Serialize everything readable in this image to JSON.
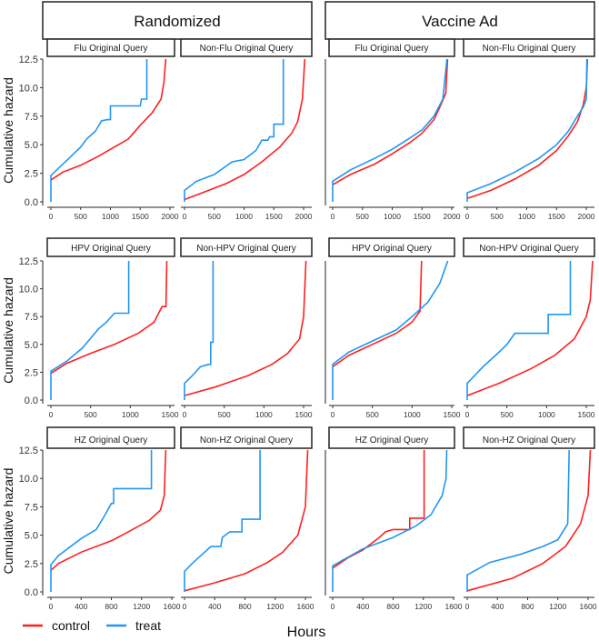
{
  "chart_data": {
    "type": "line",
    "ylabel": "Cumulative hazard",
    "xlabel": "Hours",
    "ylim": [
      0,
      12.5
    ],
    "yticks": [
      "0.0",
      "2.5",
      "5.0",
      "7.5",
      "10.0",
      "12.5"
    ],
    "groups": [
      "Randomized",
      "Vaccine Ad"
    ],
    "legend": {
      "placement": "bottom-left",
      "entries": [
        {
          "name": "control",
          "color": "#ff1f1f"
        },
        {
          "name": "treat",
          "color": "#2196f3"
        }
      ]
    },
    "rows": [
      {
        "xmax": 2000,
        "xticks": [
          "0",
          "500",
          "1000",
          "1500",
          "2000"
        ]
      },
      {
        "xmax": 1500,
        "xticks": [
          "0",
          "500",
          "1000",
          "1500"
        ]
      },
      {
        "xmax": 1600,
        "xticks": [
          "0",
          "400",
          "800",
          "1200",
          "1600"
        ]
      }
    ],
    "panels": [
      {
        "title": "Flu Original Query",
        "group": 0,
        "row": 0,
        "col": 0,
        "control": [
          [
            0,
            1.9
          ],
          [
            200,
            2.6
          ],
          [
            500,
            3.2
          ],
          [
            800,
            4
          ],
          [
            1000,
            4.6
          ],
          [
            1300,
            5.5
          ],
          [
            1500,
            6.7
          ],
          [
            1700,
            7.8
          ],
          [
            1850,
            9
          ],
          [
            1900,
            10.5
          ],
          [
            1930,
            12.5
          ]
        ],
        "treat": [
          [
            0,
            0
          ],
          [
            0,
            2.3
          ],
          [
            100,
            2.8
          ],
          [
            300,
            3.8
          ],
          [
            500,
            4.8
          ],
          [
            600,
            5.5
          ],
          [
            750,
            6.2
          ],
          [
            850,
            7.1
          ],
          [
            950,
            7.2
          ],
          [
            1000,
            7.2
          ],
          [
            1000,
            8.4
          ],
          [
            1500,
            8.4
          ],
          [
            1520,
            9
          ],
          [
            1610,
            9
          ],
          [
            1610,
            12.5
          ]
        ]
      },
      {
        "title": "Non-Flu Original Query",
        "group": 0,
        "row": 0,
        "col": 1,
        "control": [
          [
            0,
            0.2
          ],
          [
            300,
            0.8
          ],
          [
            700,
            1.6
          ],
          [
            1000,
            2.4
          ],
          [
            1300,
            3.5
          ],
          [
            1600,
            4.8
          ],
          [
            1800,
            6
          ],
          [
            1900,
            7
          ],
          [
            1980,
            9
          ],
          [
            2020,
            12.5
          ]
        ],
        "treat": [
          [
            0,
            0
          ],
          [
            0,
            1
          ],
          [
            200,
            1.8
          ],
          [
            500,
            2.4
          ],
          [
            800,
            3.5
          ],
          [
            1000,
            3.7
          ],
          [
            1200,
            4.5
          ],
          [
            1300,
            5.4
          ],
          [
            1400,
            5.4
          ],
          [
            1430,
            5.7
          ],
          [
            1500,
            5.7
          ],
          [
            1500,
            6.8
          ],
          [
            1660,
            6.8
          ],
          [
            1660,
            12.5
          ]
        ]
      },
      {
        "title": "Flu Original Query",
        "group": 1,
        "row": 0,
        "col": 0,
        "control": [
          [
            0,
            1.5
          ],
          [
            300,
            2.4
          ],
          [
            700,
            3.3
          ],
          [
            1000,
            4.2
          ],
          [
            1300,
            5.2
          ],
          [
            1500,
            6
          ],
          [
            1700,
            7.2
          ],
          [
            1800,
            8.3
          ],
          [
            1900,
            9.5
          ],
          [
            1930,
            12.5
          ]
        ],
        "treat": [
          [
            0,
            0
          ],
          [
            0,
            1.8
          ],
          [
            300,
            2.8
          ],
          [
            700,
            3.8
          ],
          [
            1000,
            4.6
          ],
          [
            1300,
            5.6
          ],
          [
            1500,
            6.3
          ],
          [
            1700,
            7.5
          ],
          [
            1850,
            9
          ],
          [
            1900,
            11.5
          ],
          [
            1920,
            12.5
          ]
        ]
      },
      {
        "title": "Non-Flu Original Query",
        "group": 1,
        "row": 0,
        "col": 1,
        "control": [
          [
            0,
            0.3
          ],
          [
            400,
            1
          ],
          [
            800,
            2
          ],
          [
            1200,
            3.2
          ],
          [
            1500,
            4.5
          ],
          [
            1700,
            5.8
          ],
          [
            1850,
            7
          ],
          [
            1950,
            8.5
          ],
          [
            2000,
            10
          ],
          [
            2020,
            12.5
          ]
        ],
        "treat": [
          [
            0,
            0
          ],
          [
            0,
            0.8
          ],
          [
            400,
            1.6
          ],
          [
            800,
            2.6
          ],
          [
            1200,
            3.8
          ],
          [
            1500,
            5
          ],
          [
            1700,
            6.2
          ],
          [
            1850,
            7.5
          ],
          [
            1950,
            8.3
          ],
          [
            2000,
            9
          ],
          [
            2010,
            12.5
          ]
        ]
      },
      {
        "title": "HPV Original Query",
        "group": 0,
        "row": 1,
        "col": 0,
        "control": [
          [
            0,
            2.4
          ],
          [
            200,
            3.3
          ],
          [
            500,
            4.2
          ],
          [
            800,
            5
          ],
          [
            1100,
            6
          ],
          [
            1300,
            7
          ],
          [
            1400,
            8.4
          ],
          [
            1450,
            8.4
          ],
          [
            1460,
            12.5
          ]
        ],
        "treat": [
          [
            0,
            0
          ],
          [
            0,
            2.6
          ],
          [
            200,
            3.5
          ],
          [
            400,
            4.7
          ],
          [
            600,
            6.4
          ],
          [
            700,
            7
          ],
          [
            800,
            7.8
          ],
          [
            980,
            7.8
          ],
          [
            980,
            12.5
          ]
        ]
      },
      {
        "title": "Non-HPV Original Query",
        "group": 0,
        "row": 1,
        "col": 1,
        "control": [
          [
            0,
            0.4
          ],
          [
            400,
            1.2
          ],
          [
            800,
            2.2
          ],
          [
            1100,
            3.2
          ],
          [
            1300,
            4.2
          ],
          [
            1450,
            5.5
          ],
          [
            1500,
            7.5
          ],
          [
            1530,
            12.5
          ]
        ],
        "treat": [
          [
            0,
            0
          ],
          [
            0,
            1.5
          ],
          [
            100,
            2.2
          ],
          [
            200,
            3
          ],
          [
            300,
            3.2
          ],
          [
            330,
            3.2
          ],
          [
            330,
            5.2
          ],
          [
            360,
            5.2
          ],
          [
            360,
            12.5
          ]
        ]
      },
      {
        "title": "HPV Original Query",
        "group": 1,
        "row": 1,
        "col": 0,
        "control": [
          [
            0,
            3
          ],
          [
            200,
            4
          ],
          [
            500,
            5
          ],
          [
            800,
            6
          ],
          [
            1000,
            7
          ],
          [
            1100,
            8
          ],
          [
            1120,
            12.5
          ]
        ],
        "treat": [
          [
            0,
            0
          ],
          [
            0,
            3.2
          ],
          [
            200,
            4.3
          ],
          [
            500,
            5.3
          ],
          [
            800,
            6.3
          ],
          [
            1000,
            7.5
          ],
          [
            1200,
            8.8
          ],
          [
            1350,
            10.5
          ],
          [
            1450,
            12.5
          ]
        ]
      },
      {
        "title": "Non-HPV Original Query",
        "group": 1,
        "row": 1,
        "col": 1,
        "control": [
          [
            0,
            0.4
          ],
          [
            400,
            1.5
          ],
          [
            800,
            2.8
          ],
          [
            1100,
            4
          ],
          [
            1350,
            5.5
          ],
          [
            1500,
            7.5
          ],
          [
            1550,
            9
          ],
          [
            1580,
            12.5
          ]
        ],
        "treat": [
          [
            0,
            0
          ],
          [
            0,
            1.5
          ],
          [
            200,
            3
          ],
          [
            400,
            4.3
          ],
          [
            500,
            5
          ],
          [
            600,
            6
          ],
          [
            1020,
            6
          ],
          [
            1020,
            7.7
          ],
          [
            1300,
            7.7
          ],
          [
            1300,
            12.5
          ]
        ]
      },
      {
        "title": "HZ Original Query",
        "group": 0,
        "row": 2,
        "col": 0,
        "control": [
          [
            0,
            1.9
          ],
          [
            100,
            2.5
          ],
          [
            400,
            3.5
          ],
          [
            800,
            4.5
          ],
          [
            1000,
            5.2
          ],
          [
            1300,
            6.3
          ],
          [
            1450,
            7.2
          ],
          [
            1500,
            8.5
          ],
          [
            1520,
            12.5
          ]
        ],
        "treat": [
          [
            0,
            0
          ],
          [
            0,
            2.4
          ],
          [
            100,
            3.2
          ],
          [
            400,
            4.7
          ],
          [
            600,
            5.5
          ],
          [
            700,
            6.6
          ],
          [
            800,
            7.8
          ],
          [
            830,
            7.8
          ],
          [
            830,
            9.1
          ],
          [
            1330,
            9.1
          ],
          [
            1330,
            12.5
          ]
        ]
      },
      {
        "title": "Non-HZ Original Query",
        "group": 0,
        "row": 2,
        "col": 1,
        "control": [
          [
            0,
            0.1
          ],
          [
            400,
            0.8
          ],
          [
            800,
            1.6
          ],
          [
            1100,
            2.6
          ],
          [
            1300,
            3.5
          ],
          [
            1500,
            5
          ],
          [
            1600,
            7.5
          ],
          [
            1630,
            12.5
          ]
        ],
        "treat": [
          [
            0,
            0
          ],
          [
            0,
            1.8
          ],
          [
            100,
            2.5
          ],
          [
            300,
            3.7
          ],
          [
            350,
            4
          ],
          [
            480,
            4
          ],
          [
            500,
            4.8
          ],
          [
            600,
            5.3
          ],
          [
            760,
            5.3
          ],
          [
            760,
            6.4
          ],
          [
            1000,
            6.4
          ],
          [
            1000,
            12.5
          ]
        ]
      },
      {
        "title": "HZ Original Query",
        "group": 1,
        "row": 2,
        "col": 0,
        "control": [
          [
            0,
            2.1
          ],
          [
            200,
            3
          ],
          [
            400,
            3.7
          ],
          [
            600,
            4.7
          ],
          [
            700,
            5.3
          ],
          [
            800,
            5.5
          ],
          [
            1020,
            5.5
          ],
          [
            1020,
            6.5
          ],
          [
            1210,
            6.5
          ],
          [
            1210,
            12.5
          ]
        ],
        "treat": [
          [
            0,
            0
          ],
          [
            0,
            2.3
          ],
          [
            400,
            3.8
          ],
          [
            800,
            4.8
          ],
          [
            1100,
            5.8
          ],
          [
            1300,
            6.8
          ],
          [
            1450,
            8.5
          ],
          [
            1500,
            10
          ],
          [
            1510,
            12.5
          ]
        ]
      },
      {
        "title": "Non-HZ Original Query",
        "group": 1,
        "row": 2,
        "col": 1,
        "control": [
          [
            0,
            0.1
          ],
          [
            600,
            1.2
          ],
          [
            1000,
            2.5
          ],
          [
            1300,
            4
          ],
          [
            1500,
            6
          ],
          [
            1600,
            8.5
          ],
          [
            1630,
            12.5
          ]
        ],
        "treat": [
          [
            0,
            0
          ],
          [
            0,
            1.5
          ],
          [
            300,
            2.6
          ],
          [
            700,
            3.3
          ],
          [
            1000,
            4
          ],
          [
            1200,
            4.6
          ],
          [
            1330,
            6
          ],
          [
            1350,
            12.5
          ]
        ]
      }
    ]
  }
}
